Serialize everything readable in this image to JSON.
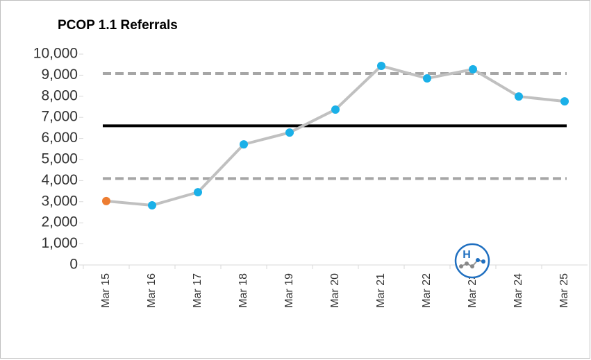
{
  "chart_data": {
    "type": "line",
    "title": "PCOP 1.1 Referrals",
    "categories": [
      "Mar 15",
      "Mar 16",
      "Mar 17",
      "Mar 18",
      "Mar 19",
      "Mar 20",
      "Mar 21",
      "Mar 22",
      "Mar 23",
      "Mar 24",
      "Mar 25"
    ],
    "series": [
      {
        "color": "#c0c0c0",
        "values": [
          3030,
          2830,
          3450,
          5720,
          6280,
          7370,
          9440,
          8850,
          9280,
          7990,
          7760
        ],
        "point_colors": [
          "#ed7d31",
          "#1ab0e8",
          "#1ab0e8",
          "#1ab0e8",
          "#1ab0e8",
          "#1ab0e8",
          "#1ab0e8",
          "#1ab0e8",
          "#1ab0e8",
          "#1ab0e8",
          "#1ab0e8"
        ]
      }
    ],
    "reference_lines": [
      {
        "value": 6600,
        "color": "#000000",
        "style": "solid"
      },
      {
        "value": 9080,
        "color": "#a6a6a6",
        "style": "dashed"
      },
      {
        "value": 4100,
        "color": "#a6a6a6",
        "style": "dashed"
      }
    ],
    "ylim": [
      0,
      10000
    ],
    "yticks": [
      0,
      {
        "value": 1000,
        "label": "1,000"
      },
      {
        "value": 2000,
        "label": "2,000"
      },
      {
        "value": 3000,
        "label": "3,000"
      },
      {
        "value": 4000,
        "label": "4,000"
      },
      {
        "value": 5000,
        "label": "5,000"
      },
      {
        "value": 6000,
        "label": "6,000"
      },
      {
        "value": 7000,
        "label": "7,000"
      },
      {
        "value": 8000,
        "label": "8,000"
      },
      {
        "value": 9000,
        "label": "9,000"
      },
      {
        "value": 10000,
        "label": "10,000"
      }
    ],
    "grid": false
  }
}
